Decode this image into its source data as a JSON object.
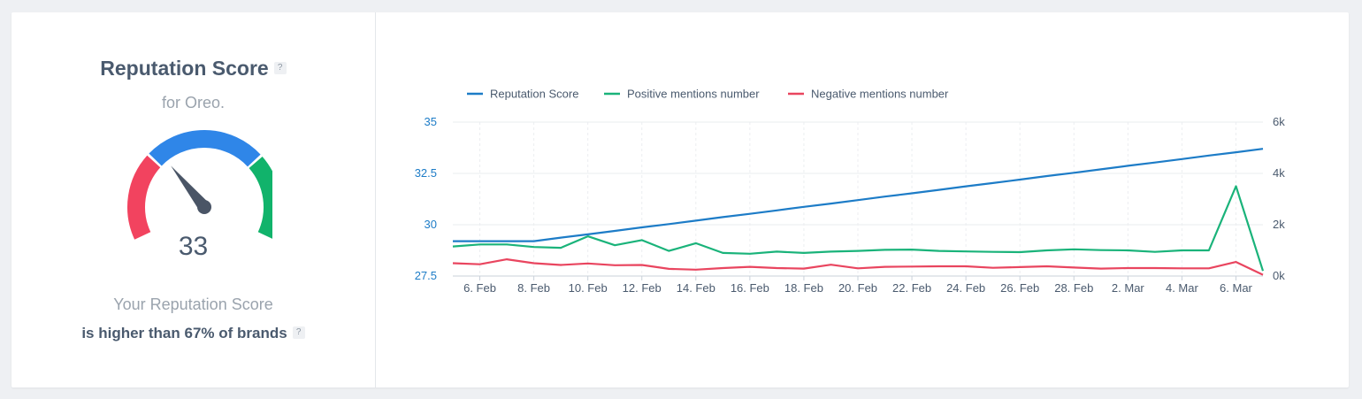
{
  "score_panel": {
    "title": "Reputation Score",
    "help": "?",
    "subtitle": "for Oreo.",
    "score": "33",
    "caption": "Your Reputation Score",
    "comparison": "is higher than 67% of brands",
    "comparison_help": "?"
  },
  "gauge": {
    "value": 33,
    "colors": {
      "red": "#f2435f",
      "blue": "#2f86e8",
      "green": "#11b36b",
      "needle": "#4a5566"
    }
  },
  "chart_data": {
    "type": "line",
    "colors": {
      "reputation": "#1d7cc7",
      "positive": "#1ab37a",
      "negative": "#e9455f"
    },
    "legend": [
      "Reputation Score",
      "Positive mentions number",
      "Negative mentions number"
    ],
    "x_labels": [
      "6. Feb",
      "8. Feb",
      "10. Feb",
      "12. Feb",
      "14. Feb",
      "16. Feb",
      "18. Feb",
      "20. Feb",
      "22. Feb",
      "24. Feb",
      "26. Feb",
      "28. Feb",
      "2. Mar",
      "4. Mar",
      "6. Mar"
    ],
    "x_dates": [
      "5. Feb",
      "6. Feb",
      "7. Feb",
      "8. Feb",
      "9. Feb",
      "10. Feb",
      "11. Feb",
      "12. Feb",
      "13. Feb",
      "14. Feb",
      "15. Feb",
      "16. Feb",
      "17. Feb",
      "18. Feb",
      "19. Feb",
      "20. Feb",
      "21. Feb",
      "22. Feb",
      "23. Feb",
      "24. Feb",
      "25. Feb",
      "26. Feb",
      "27. Feb",
      "28. Feb",
      "1. Mar",
      "2. Mar",
      "3. Mar",
      "4. Mar",
      "5. Mar",
      "6. Mar",
      "7. Mar"
    ],
    "y_left": {
      "ticks": [
        "35",
        "32.5",
        "30",
        "27.5"
      ],
      "ylim": [
        27.5,
        35
      ]
    },
    "y_right": {
      "ticks": [
        "6k",
        "4k",
        "2k",
        "0k"
      ],
      "ylim": [
        0,
        6000
      ]
    },
    "series": [
      {
        "name": "Reputation Score",
        "axis": "left",
        "values": [
          29.2,
          29.2,
          29.2,
          29.2,
          29.37,
          29.53,
          29.7,
          29.87,
          30.03,
          30.2,
          30.37,
          30.53,
          30.7,
          30.87,
          31.03,
          31.2,
          31.37,
          31.53,
          31.7,
          31.87,
          32.03,
          32.2,
          32.37,
          32.53,
          32.7,
          32.87,
          33.03,
          33.2,
          33.37,
          33.53,
          33.7
        ]
      },
      {
        "name": "Positive mentions number",
        "axis": "right",
        "values": [
          1150,
          1230,
          1230,
          1130,
          1100,
          1550,
          1200,
          1400,
          980,
          1280,
          900,
          870,
          950,
          900,
          950,
          980,
          1020,
          1030,
          980,
          960,
          940,
          930,
          1000,
          1040,
          1010,
          1000,
          940,
          1000,
          1000,
          3500,
          200
        ]
      },
      {
        "name": "Negative mentions number",
        "axis": "right",
        "values": [
          500,
          460,
          650,
          500,
          430,
          490,
          420,
          430,
          280,
          250,
          310,
          360,
          310,
          290,
          440,
          300,
          360,
          370,
          380,
          380,
          320,
          350,
          380,
          330,
          290,
          310,
          310,
          300,
          300,
          550,
          50
        ]
      }
    ]
  }
}
